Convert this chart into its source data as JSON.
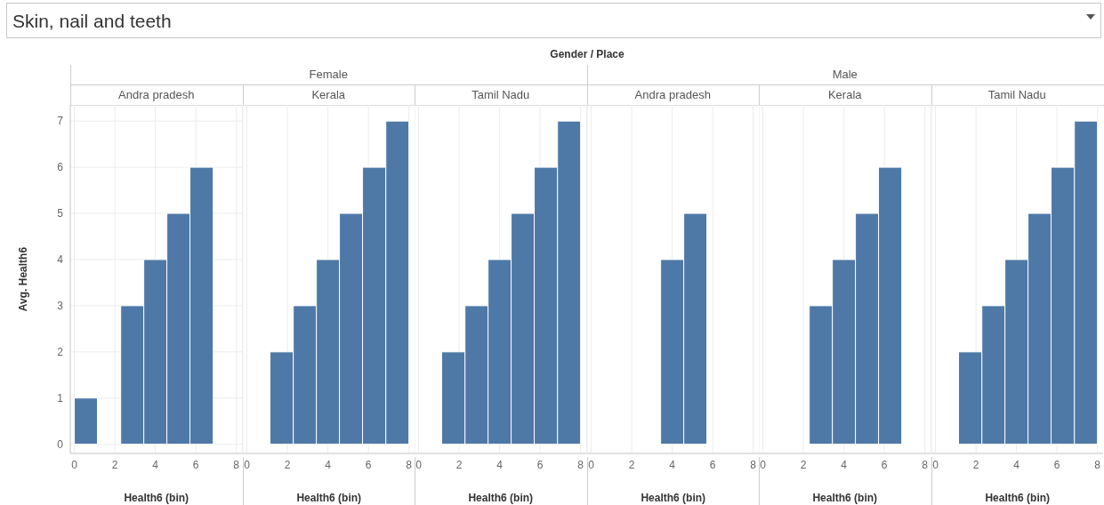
{
  "chart_data": [
    {
      "type": "histogram",
      "title": "Andra pradesh",
      "xlabel": "Health6 (bin)",
      "ylabel": "Avg. Health6",
      "annotations": [
        "Skin, nail and teeth",
        "Gender / Place",
        "Female"
      ],
      "bins": [
        0,
        1.14,
        2.29,
        3.43,
        4.57,
        5.71,
        6.86,
        8
      ],
      "values": [
        1,
        null,
        3,
        4,
        5,
        6,
        null
      ],
      "color": "#4e79a7",
      "xlim": [
        -0.2,
        8.3
      ],
      "xticks": [
        0,
        2,
        4,
        6,
        8
      ],
      "ylim": [
        -0.2,
        7.35
      ],
      "yticks": [
        0,
        1,
        2,
        3,
        4,
        5,
        6,
        7
      ],
      "grid": true
    },
    {
      "type": "histogram",
      "title": "Kerala",
      "xlabel": "Health6 (bin)",
      "bins": [
        0,
        1.14,
        2.29,
        3.43,
        4.57,
        5.71,
        6.86,
        8
      ],
      "values": [
        null,
        2,
        3,
        4,
        5,
        6,
        7
      ],
      "color": "#4e79a7",
      "xlim": [
        -0.2,
        8.3
      ],
      "xticks": [
        0,
        2,
        4,
        6,
        8
      ],
      "ylim": [
        -0.2,
        7.35
      ],
      "yticks": [
        0,
        1,
        2,
        3,
        4,
        5,
        6,
        7
      ],
      "grid": true,
      "tick_labels": "x"
    },
    {
      "type": "histogram",
      "title": "Tamil Nadu",
      "xlabel": "Health6 (bin)",
      "bins": [
        0,
        1.14,
        2.29,
        3.43,
        4.57,
        5.71,
        6.86,
        8
      ],
      "values": [
        null,
        2,
        3,
        4,
        5,
        6,
        7
      ],
      "color": "#4e79a7",
      "xlim": [
        -0.2,
        8.3
      ],
      "xticks": [
        0,
        2,
        4,
        6,
        8
      ],
      "ylim": [
        -0.2,
        7.35
      ],
      "yticks": [
        0,
        1,
        2,
        3,
        4,
        5,
        6,
        7
      ],
      "grid": true,
      "tick_labels": "x"
    },
    {
      "type": "histogram",
      "title": "Andra pradesh",
      "xlabel": "Health6 (bin)",
      "annotations": [
        "Male"
      ],
      "bins": [
        0,
        1.14,
        2.29,
        3.43,
        4.57,
        5.71,
        6.86,
        8
      ],
      "values": [
        null,
        null,
        null,
        4,
        5,
        null,
        null
      ],
      "color": "#4e79a7",
      "xlim": [
        -0.2,
        8.3
      ],
      "xticks": [
        0,
        2,
        4,
        6,
        8
      ],
      "ylim": [
        -0.2,
        7.35
      ],
      "yticks": [
        0,
        1,
        2,
        3,
        4,
        5,
        6,
        7
      ],
      "grid": true,
      "tick_labels": "x"
    },
    {
      "type": "histogram",
      "title": "Kerala",
      "xlabel": "Health6 (bin)",
      "bins": [
        0,
        1.14,
        2.29,
        3.43,
        4.57,
        5.71,
        6.86,
        8
      ],
      "values": [
        null,
        null,
        3,
        4,
        5,
        6,
        null
      ],
      "color": "#4e79a7",
      "xlim": [
        -0.2,
        8.3
      ],
      "xticks": [
        0,
        2,
        4,
        6,
        8
      ],
      "ylim": [
        -0.2,
        7.35
      ],
      "yticks": [
        0,
        1,
        2,
        3,
        4,
        5,
        6,
        7
      ],
      "grid": true,
      "tick_labels": "x"
    },
    {
      "type": "histogram",
      "title": "Tamil Nadu",
      "xlabel": "Health6 (bin)",
      "bins": [
        0,
        1.14,
        2.29,
        3.43,
        4.57,
        5.71,
        6.86,
        8
      ],
      "values": [
        null,
        2,
        3,
        4,
        5,
        6,
        7
      ],
      "color": "#4e79a7",
      "xlim": [
        -0.2,
        8.3
      ],
      "xticks": [
        0,
        2,
        4,
        6,
        8
      ],
      "ylim": [
        -0.2,
        7.35
      ],
      "yticks": [
        0,
        1,
        2,
        3,
        4,
        5,
        6,
        7
      ],
      "grid": true,
      "tick_labels": "x"
    }
  ]
}
